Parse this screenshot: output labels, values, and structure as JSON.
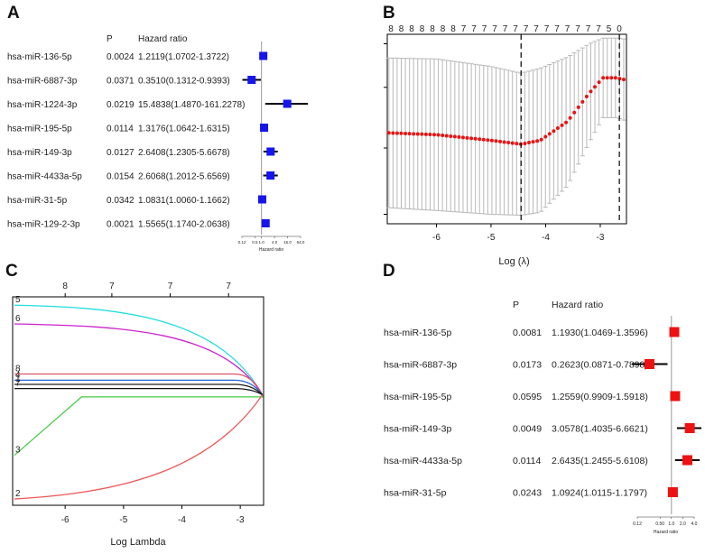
{
  "panels": {
    "a": "A",
    "b": "B",
    "c": "C",
    "d": "D"
  },
  "chart_data": [
    {
      "type": "forest",
      "panel": "A",
      "headers": {
        "p": "P",
        "hr": "Hazard  ratio"
      },
      "rows": [
        {
          "label": "hsa-miR-136-5p",
          "p": "0.0024",
          "hr_text": "1.2119(1.0702-1.3722)",
          "hr": 1.2119,
          "lo": 1.0702,
          "hi": 1.3722
        },
        {
          "label": "hsa-miR-6887-3p",
          "p": "0.0371",
          "hr_text": "0.3510(0.1312-0.9393)",
          "hr": 0.351,
          "lo": 0.1312,
          "hi": 0.9393
        },
        {
          "label": "hsa-miR-1224-3p",
          "p": "0.0219",
          "hr_text": "15.4838(1.4870-161.2278)",
          "hr": 15.4838,
          "lo": 1.487,
          "hi": 161.2278
        },
        {
          "label": "hsa-miR-195-5p",
          "p": "0.0114",
          "hr_text": "1.3176(1.0642-1.6315)",
          "hr": 1.3176,
          "lo": 1.0642,
          "hi": 1.6315
        },
        {
          "label": "hsa-miR-149-3p",
          "p": "0.0127",
          "hr_text": "2.6408(1.2305-5.6678)",
          "hr": 2.6408,
          "lo": 1.2305,
          "hi": 5.6678
        },
        {
          "label": "hsa-miR-4433a-5p",
          "p": "0.0154",
          "hr_text": "2.6068(1.2012-5.6569)",
          "hr": 2.6068,
          "lo": 1.2012,
          "hi": 5.6569
        },
        {
          "label": "hsa-miR-31-5p",
          "p": "0.0342",
          "hr_text": "1.0831(1.0060-1.1662)",
          "hr": 1.0831,
          "lo": 1.006,
          "hi": 1.1662
        },
        {
          "label": "hsa-miR-129-2-3p",
          "p": "0.0021",
          "hr_text": "1.5565(1.1740-2.0638)",
          "hr": 1.5565,
          "lo": 1.174,
          "hi": 2.0638
        }
      ],
      "xscale": "log",
      "xticks": [
        "0.12",
        "0.5",
        "1.0",
        "4.0",
        "16.0",
        "64.0"
      ],
      "xtick_values": [
        0.125,
        0.5,
        1,
        4,
        16,
        64
      ],
      "xlabel": "Hazard ratio",
      "marker_color": "#1515ee"
    },
    {
      "type": "line",
      "panel": "B",
      "xlabel": "Log (λ)",
      "xticks": [
        -6,
        -5,
        -4,
        -3
      ],
      "xlim": [
        -6.9,
        -2.52
      ],
      "ylim": [
        0,
        1
      ],
      "top_counts": [
        "8",
        "8",
        "8",
        "8",
        "8",
        "8",
        "8",
        "7",
        "7",
        "7",
        "7",
        "7",
        "7",
        "7",
        "7",
        "7",
        "7",
        "7",
        "7",
        "7",
        "7",
        "5",
        "0"
      ],
      "vlines": [
        -4.45,
        -2.65
      ],
      "curve": [
        {
          "x": -6.9,
          "y": 0.48,
          "err": 0.395
        },
        {
          "x": -6.0,
          "y": 0.47,
          "err": 0.4
        },
        {
          "x": -5.0,
          "y": 0.44,
          "err": 0.39
        },
        {
          "x": -4.45,
          "y": 0.42,
          "err": 0.375
        },
        {
          "x": -4.1,
          "y": 0.44,
          "err": 0.38
        },
        {
          "x": -3.6,
          "y": 0.54,
          "err": 0.34
        },
        {
          "x": -3.2,
          "y": 0.69,
          "err": 0.26
        },
        {
          "x": -2.95,
          "y": 0.77,
          "err": 0.21
        },
        {
          "x": -2.7,
          "y": 0.77,
          "err": 0.21
        },
        {
          "x": -2.55,
          "y": 0.76,
          "err": 0.215
        }
      ],
      "point_color": "#ee1111",
      "bar_color": "#b8b8b8"
    },
    {
      "type": "line",
      "panel": "C",
      "xlabel": "Log Lambda",
      "xticks": [
        -6,
        -5,
        -4,
        -3
      ],
      "xlim": [
        -6.9,
        -2.6
      ],
      "top_ticks": [
        {
          "x": -6.0,
          "label": "8"
        },
        {
          "x": -5.2,
          "label": "7"
        },
        {
          "x": -4.2,
          "label": "7"
        },
        {
          "x": -3.2,
          "label": "7"
        }
      ],
      "series": [
        {
          "name": "5",
          "color": "#22dddd",
          "start": 0.96,
          "shape": "cyan"
        },
        {
          "name": "6",
          "color": "#cc22cc",
          "start": 0.87,
          "shape": "magenta"
        },
        {
          "name": "8",
          "color": "#dd5566",
          "start": 0.63,
          "shape": "flat-red"
        },
        {
          "name": "4",
          "color": "#2266dd",
          "start": 0.6,
          "shape": "flat-blue"
        },
        {
          "name": "1",
          "color": "#222222",
          "start": 0.58,
          "shape": "flat-black"
        },
        {
          "name": "7",
          "color": "#111111",
          "start": 0.56,
          "shape": "flat-black2"
        },
        {
          "name": "3",
          "color": "#44cc44",
          "start": 0.24,
          "shape": "green"
        },
        {
          "name": "2",
          "color": "#ee5555",
          "start": 0.03,
          "shape": "low-red"
        }
      ],
      "converge": 0.53
    },
    {
      "type": "forest",
      "panel": "D",
      "headers": {
        "p": "P",
        "hr": "Hazard  ratio"
      },
      "rows": [
        {
          "label": "hsa-miR-136-5p",
          "p": "0.0081",
          "hr_text": "1.1930(1.0469-1.3596)",
          "hr": 1.193,
          "lo": 1.0469,
          "hi": 1.3596
        },
        {
          "label": "hsa-miR-6887-3p",
          "p": "0.0173",
          "hr_text": "0.2623(0.0871-0.7898)",
          "hr": 0.2623,
          "lo": 0.0871,
          "hi": 0.7898
        },
        {
          "label": "hsa-miR-195-5p",
          "p": "0.0595",
          "hr_text": "1.2559(0.9909-1.5918)",
          "hr": 1.2559,
          "lo": 0.9909,
          "hi": 1.5918
        },
        {
          "label": "hsa-miR-149-3p",
          "p": "0.0049",
          "hr_text": "3.0578(1.4035-6.6621)",
          "hr": 3.0578,
          "lo": 1.4035,
          "hi": 6.6621
        },
        {
          "label": "hsa-miR-4433a-5p",
          "p": "0.0114",
          "hr_text": "2.6435(1.2455-5.6108)",
          "hr": 2.6435,
          "lo": 1.2455,
          "hi": 5.6108
        },
        {
          "label": "hsa-miR-31-5p",
          "p": "0.0243",
          "hr_text": "1.0924(1.0115-1.1797)",
          "hr": 1.0924,
          "lo": 1.0115,
          "hi": 1.1797
        }
      ],
      "xscale": "log",
      "xticks": [
        "0.12",
        "0.50",
        "1.0",
        "2.0",
        "4.0"
      ],
      "xtick_values": [
        0.125,
        0.5,
        1,
        2,
        4
      ],
      "xlabel": "Hazard ratio",
      "marker_color": "#ee1111"
    }
  ]
}
